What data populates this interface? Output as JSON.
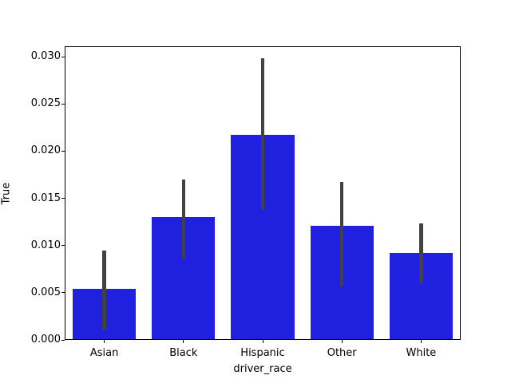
{
  "figure": {
    "background_color": "#ffffff",
    "axes_edge_color": "#000000"
  },
  "chart_data": {
    "type": "bar",
    "title": "",
    "xlabel": "driver_race",
    "ylabel": "True",
    "categories": [
      "Asian",
      "Black",
      "Hispanic",
      "Other",
      "White"
    ],
    "values": [
      0.0054,
      0.013,
      0.0217,
      0.0121,
      0.0092
    ],
    "error_low": [
      0.0011,
      0.0085,
      0.0138,
      0.0057,
      0.006
    ],
    "error_high": [
      0.0095,
      0.017,
      0.0298,
      0.0167,
      0.0123
    ],
    "ylim": [
      0,
      0.0311
    ],
    "yticks": [
      0.0,
      0.005,
      0.01,
      0.015,
      0.02,
      0.025,
      0.03
    ],
    "ytick_labels": [
      "0.000",
      "0.005",
      "0.010",
      "0.015",
      "0.020",
      "0.025",
      "0.030"
    ],
    "bar_color": "#2020df",
    "error_color": "#424242",
    "grid": false,
    "legend": null,
    "bar_rel_width": 0.8
  }
}
